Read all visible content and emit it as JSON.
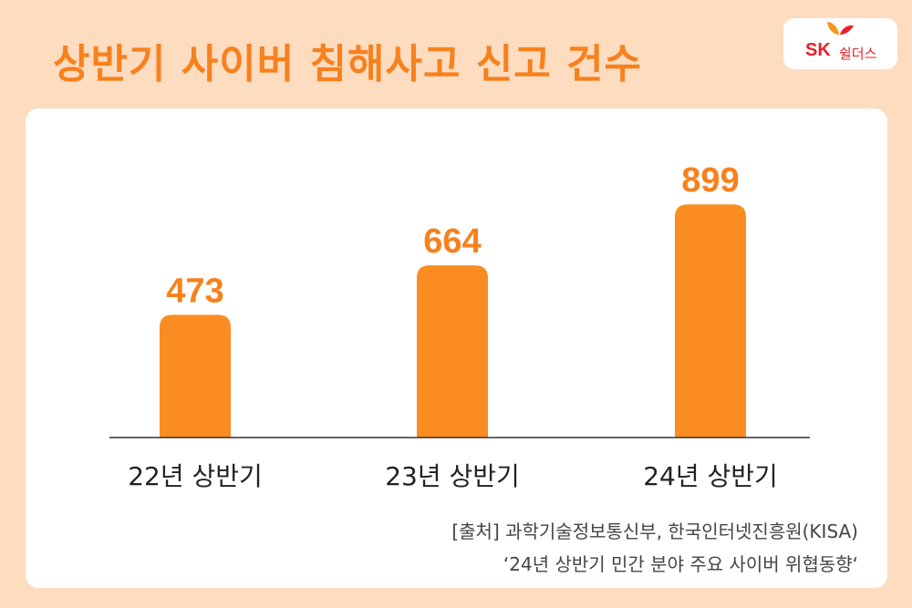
{
  "title": "상반기 사이버 침해사고 신고 건수",
  "logo": {
    "brand": "SK",
    "name": "쉴더스"
  },
  "colors": {
    "background": "#fddcc0",
    "accent": "#f7811e",
    "bar": "#fa8c22",
    "logo_red": "#e8202a"
  },
  "chart_data": {
    "type": "bar",
    "categories": [
      "22년 상반기",
      "23년 상반기",
      "24년 상반기"
    ],
    "values": [
      473,
      664,
      899
    ],
    "title": "상반기 사이버 침해사고 신고 건수",
    "xlabel": "",
    "ylabel": "",
    "ylim": [
      0,
      1000
    ],
    "grid": false,
    "data_labels": true
  },
  "source": {
    "line1": "[출처] 과학기술정보통신부, 한국인터넷진흥원(KISA)",
    "line2": "‘24년 상반기 민간 분야 주요 사이버 위협동향‘"
  }
}
